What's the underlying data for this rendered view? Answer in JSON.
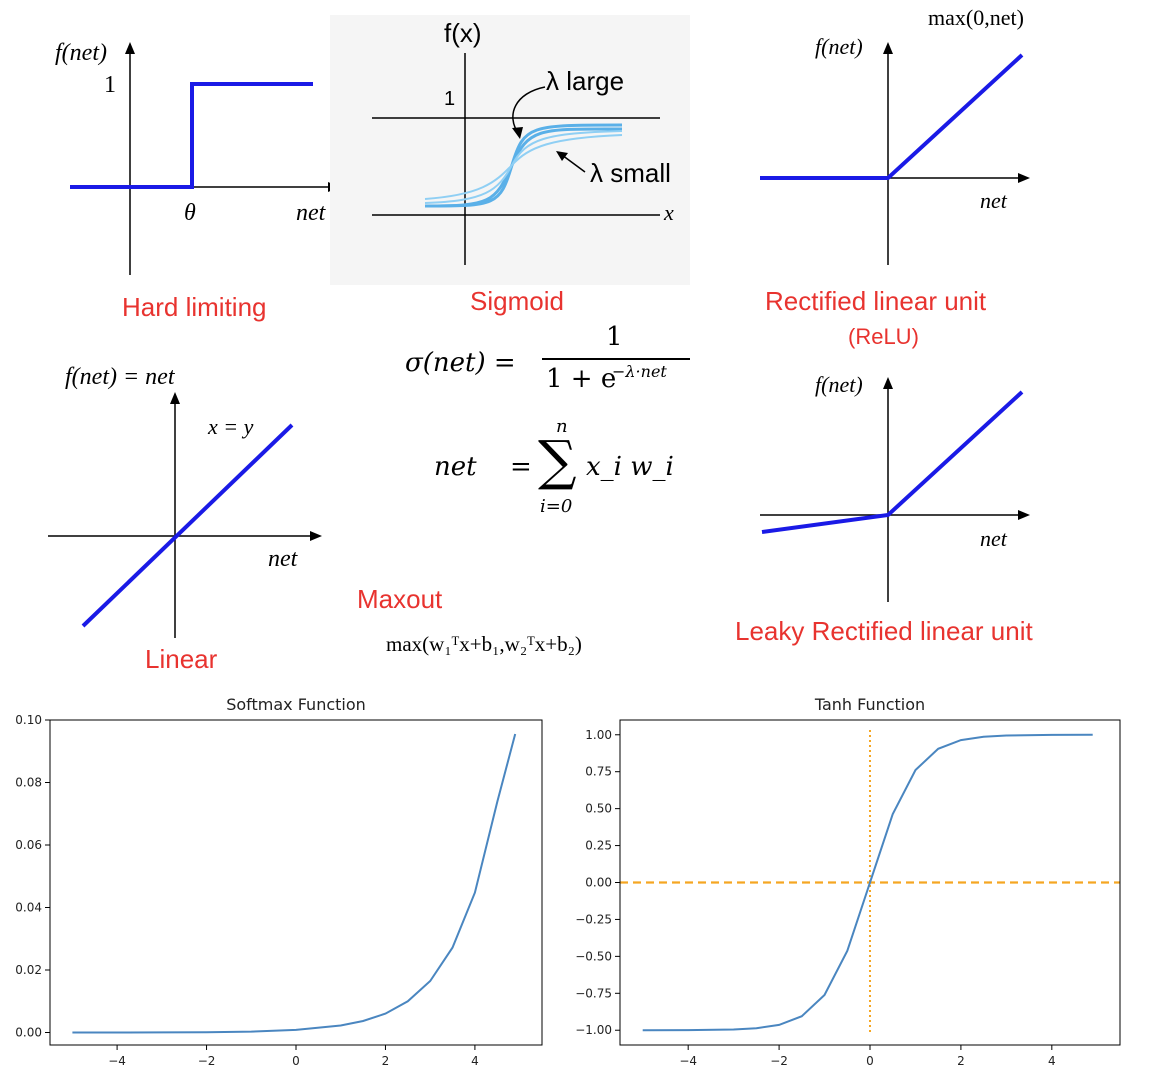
{
  "hard_limiting": {
    "ylabel": "f(net)",
    "one": "1",
    "theta": "θ",
    "xlabel": "net",
    "caption": "Hard limiting"
  },
  "sigmoid": {
    "ylabel": "f(x)",
    "one": "1",
    "large": "λ large",
    "small": "λ small",
    "x": "x",
    "caption": "Sigmoid",
    "formula_lhs": "σ(net) =",
    "formula_num": "1",
    "formula_den": "1 + e",
    "formula_exp": "−λ·net"
  },
  "relu": {
    "max_label": "max(0,net)",
    "ylabel": "f(net)",
    "xlabel": "net",
    "caption": "Rectified linear unit",
    "caption2": "(ReLU)"
  },
  "linear": {
    "ylabel": "f(net) = net",
    "xy": "x = y",
    "xlabel": "net",
    "caption": "Linear"
  },
  "net_formula": {
    "lhs": "net",
    "eq": "=",
    "sigma": "∑",
    "top": "n",
    "bottom": "i=0",
    "rhs": "x_i w_i"
  },
  "maxout": {
    "caption": "Maxout",
    "formula": "max(w₁ᵀx+b₁,w₂ᵀx+b₂)"
  },
  "leaky": {
    "ylabel": "f(net)",
    "xlabel": "net",
    "caption": "Leaky Rectified linear unit"
  },
  "colors": {
    "line_blue": "#1a1ae6",
    "caption_red": "#e8332f",
    "plot_blue": "#4a86c0",
    "plot_orange": "#f5a623"
  },
  "chart_data": [
    {
      "type": "line",
      "title": "Softmax Function",
      "xlim": [
        -5.5,
        5.5
      ],
      "ylim": [
        -0.004,
        0.1
      ],
      "xticks": [
        -4,
        -2,
        0,
        2,
        4
      ],
      "yticks": [
        0.0,
        0.02,
        0.04,
        0.06,
        0.08,
        0.1
      ],
      "xtick_labels": [
        "−4",
        "−2",
        "0",
        "2",
        "4"
      ],
      "ytick_labels": [
        "0.00",
        "0.02",
        "0.04",
        "0.06",
        "0.08",
        "0.10"
      ],
      "series": [
        {
          "x": [
            -5,
            -4,
            -3,
            -2,
            -1,
            0,
            1,
            1.5,
            2,
            2.5,
            3,
            3.5,
            4,
            4.5,
            4.9
          ],
          "y": [
            0.0,
            1e-05,
            4e-05,
            0.00011,
            0.0003,
            0.00082,
            0.00223,
            0.00367,
            0.00606,
            0.00999,
            0.01647,
            0.02716,
            0.04478,
            0.07383,
            0.09553
          ]
        }
      ]
    },
    {
      "type": "line",
      "title": "Tanh Function",
      "xlim": [
        -5.5,
        5.5
      ],
      "ylim": [
        -1.1,
        1.1
      ],
      "xticks": [
        -4,
        -2,
        0,
        2,
        4
      ],
      "yticks": [
        -1.0,
        -0.75,
        -0.5,
        -0.25,
        0.0,
        0.25,
        0.5,
        0.75,
        1.0
      ],
      "xtick_labels": [
        "−4",
        "−2",
        "0",
        "2",
        "4"
      ],
      "ytick_labels": [
        "−1.00",
        "−0.75",
        "−0.50",
        "−0.25",
        "0.00",
        "0.25",
        "0.50",
        "0.75",
        "1.00"
      ],
      "series": [
        {
          "x": [
            -5,
            -4,
            -3,
            -2.5,
            -2,
            -1.5,
            -1,
            -0.5,
            0,
            0.5,
            1,
            1.5,
            2,
            2.5,
            3,
            4,
            4.9
          ],
          "y": [
            -0.9999,
            -0.9993,
            -0.9951,
            -0.9866,
            -0.964,
            -0.9051,
            -0.7616,
            -0.4621,
            0,
            0.4621,
            0.7616,
            0.9051,
            0.964,
            0.9866,
            0.9951,
            0.9993,
            0.9999
          ]
        }
      ],
      "reference_lines": [
        {
          "axis": "y",
          "value": 0,
          "style": "dashed"
        },
        {
          "axis": "x",
          "value": 0,
          "style": "dotted"
        }
      ]
    }
  ]
}
